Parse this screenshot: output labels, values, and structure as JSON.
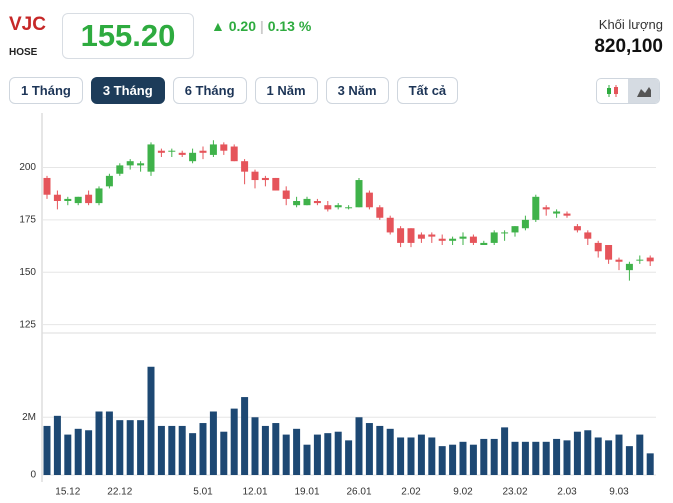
{
  "header": {
    "ticker": "VJC",
    "exchange": "HOSE",
    "price": "155.20",
    "change": "0.20",
    "change_pct": "0.13 %",
    "volume_label": "Khối lượng",
    "volume": "820,100"
  },
  "ranges": [
    "1 Tháng",
    "3 Tháng",
    "6 Tháng",
    "1 Năm",
    "3 Năm",
    "Tất cả"
  ],
  "active_range": 1,
  "chart_data": [
    {
      "type": "candlestick",
      "up_color": "#3fb24a",
      "down_color": "#e5545a",
      "ylim": [
        121,
        226
      ],
      "yticks": [
        125,
        150,
        175,
        200
      ],
      "grid": true,
      "categories": [
        null,
        null,
        "15.12",
        null,
        null,
        null,
        null,
        "22.12",
        null,
        null,
        null,
        null,
        null,
        null,
        null,
        "5.01",
        null,
        null,
        null,
        null,
        "12.01",
        null,
        null,
        null,
        null,
        "19.01",
        null,
        null,
        null,
        null,
        "26.01",
        null,
        null,
        null,
        null,
        "2.02",
        null,
        null,
        null,
        null,
        "9.02",
        null,
        null,
        null,
        null,
        "23.02",
        null,
        null,
        null,
        null,
        "2.03",
        null,
        null,
        null,
        null,
        "9.03",
        null,
        null,
        null
      ],
      "ohlc": [
        [
          195,
          196,
          185,
          187
        ],
        [
          187,
          189,
          180,
          184
        ],
        [
          184,
          186,
          182,
          185
        ],
        [
          183,
          186,
          182,
          186
        ],
        [
          187,
          189,
          182,
          183
        ],
        [
          183,
          191,
          182,
          190
        ],
        [
          191,
          197,
          190,
          196
        ],
        [
          197,
          202,
          196,
          201
        ],
        [
          201,
          204,
          199,
          203
        ],
        [
          201,
          203,
          198,
          202
        ],
        [
          198,
          212,
          196,
          211
        ],
        [
          208,
          209,
          205,
          207
        ],
        [
          208,
          209,
          205,
          208
        ],
        [
          207,
          208,
          205,
          206
        ],
        [
          203,
          209,
          202,
          207
        ],
        [
          208,
          210,
          204,
          207
        ],
        [
          206,
          213,
          205,
          211
        ],
        [
          211,
          212,
          206,
          208
        ],
        [
          210,
          211,
          203,
          203
        ],
        [
          203,
          204,
          192,
          198
        ],
        [
          198,
          199,
          190,
          194
        ],
        [
          195,
          196,
          191,
          194
        ],
        [
          195,
          195,
          189,
          189
        ],
        [
          189,
          191,
          182,
          185
        ],
        [
          182,
          186,
          181,
          184
        ],
        [
          182,
          186,
          182,
          185
        ],
        [
          184,
          185,
          182,
          183
        ],
        [
          182,
          184,
          179,
          180
        ],
        [
          181,
          183,
          180,
          182
        ],
        [
          181,
          182,
          180,
          181
        ],
        [
          181,
          195,
          181,
          194
        ],
        [
          188,
          189,
          180,
          181
        ],
        [
          181,
          182,
          175,
          176
        ],
        [
          176,
          177,
          168,
          169
        ],
        [
          171,
          172,
          162,
          164
        ],
        [
          171,
          171,
          162,
          164
        ],
        [
          168,
          169,
          164,
          166
        ],
        [
          168,
          169,
          164,
          167
        ],
        [
          166,
          168,
          163,
          165
        ],
        [
          165,
          167,
          163,
          166
        ],
        [
          166,
          169,
          163,
          167
        ],
        [
          167,
          168,
          163,
          164
        ],
        [
          163,
          165,
          163,
          164
        ],
        [
          164,
          170,
          163,
          169
        ],
        [
          169,
          170,
          165,
          169
        ],
        [
          169,
          172,
          167,
          172
        ],
        [
          171,
          177,
          170,
          175
        ],
        [
          175,
          187,
          174,
          186
        ],
        [
          181,
          182,
          177,
          180
        ],
        [
          178,
          180,
          176,
          179
        ],
        [
          178,
          179,
          176,
          177
        ],
        [
          172,
          173,
          169,
          170
        ],
        [
          169,
          170,
          163,
          166
        ],
        [
          164,
          165,
          157,
          160
        ],
        [
          163,
          163,
          154,
          156
        ],
        [
          156,
          157,
          151,
          155
        ],
        [
          151,
          155,
          146,
          154
        ],
        [
          156,
          158,
          154,
          156
        ],
        [
          157,
          158,
          153,
          155.2
        ]
      ]
    },
    {
      "type": "bar",
      "color": "#1d4873",
      "ylim": [
        0,
        4400000
      ],
      "yticks": [
        0,
        {
          "value": 2000000,
          "label": "2M"
        }
      ],
      "grid": true,
      "values": [
        1700000,
        2050000,
        1400000,
        1600000,
        1550000,
        2200000,
        2200000,
        1900000,
        1900000,
        1900000,
        3750000,
        1700000,
        1700000,
        1700000,
        1450000,
        1800000,
        2200000,
        1500000,
        2300000,
        2700000,
        2000000,
        1700000,
        1800000,
        1400000,
        1600000,
        1050000,
        1400000,
        1450000,
        1500000,
        1200000,
        2000000,
        1800000,
        1700000,
        1600000,
        1300000,
        1300000,
        1400000,
        1300000,
        1000000,
        1050000,
        1150000,
        1050000,
        1250000,
        1250000,
        1650000,
        1150000,
        1150000,
        1150000,
        1150000,
        1250000,
        1200000,
        1500000,
        1550000,
        1300000,
        1200000,
        1400000,
        1000000,
        1400000,
        750000
      ]
    }
  ]
}
